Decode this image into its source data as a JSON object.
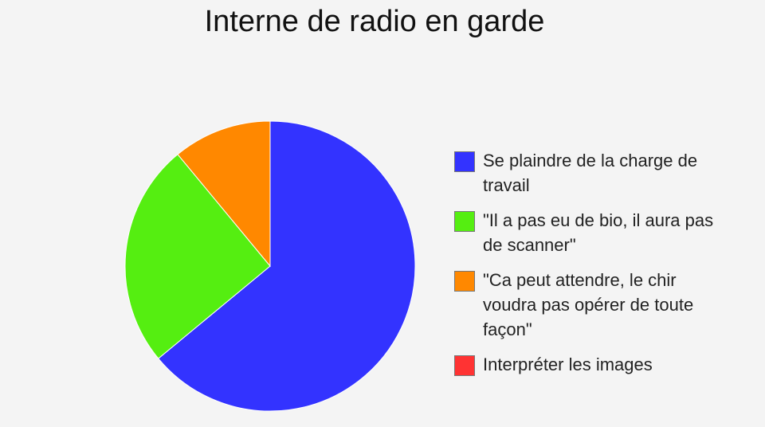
{
  "chart_data": {
    "type": "pie",
    "title": "Interne de radio en garde",
    "legend_position": "right",
    "start": "12 o'clock, clockwise",
    "slices": [
      {
        "label": "Se plaindre de la charge de travail",
        "value": 64,
        "color": "#3333ff"
      },
      {
        "label": "\"Il a pas eu de bio, il aura pas de scanner\"",
        "value": 25,
        "color": "#55ee11"
      },
      {
        "label": "\"Ca peut attendre, le chir voudra pas opérer de toute façon\"",
        "value": 11,
        "color": "#ff8800"
      },
      {
        "label": "Interpréter les images",
        "value": 0,
        "color": "#ff3333"
      }
    ]
  }
}
